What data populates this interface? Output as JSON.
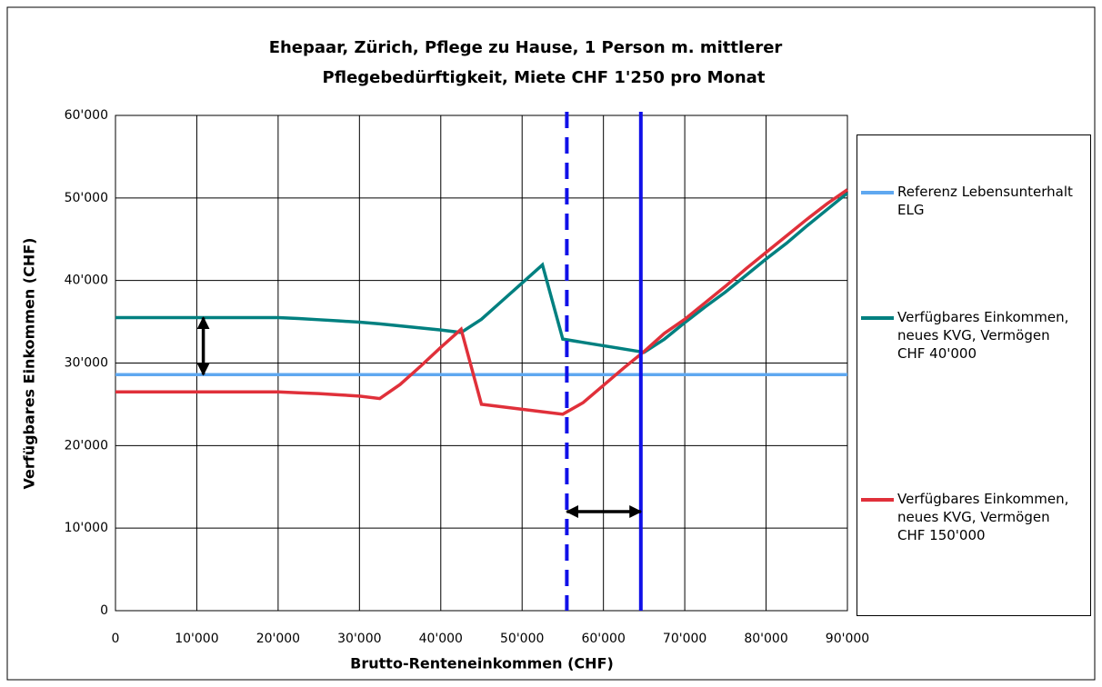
{
  "chart_data": {
    "type": "line",
    "title": [
      "Ehepaar, Zürich, Pflege zu Hause, 1 Person m. mittlerer",
      "Pflegebedürftigkeit, Miete CHF 1'250 pro Monat"
    ],
    "xlabel": "Brutto-Renteneinkommen (CHF)",
    "ylabel": "Verfügbares Einkommen (CHF)",
    "x": [
      0,
      2500,
      5000,
      7500,
      10000,
      12500,
      15000,
      17500,
      20000,
      22500,
      25000,
      27500,
      30000,
      32500,
      35000,
      37500,
      40000,
      42500,
      45000,
      47500,
      50000,
      52500,
      55000,
      57500,
      60000,
      62500,
      65000,
      67500,
      70000,
      72500,
      75000,
      77500,
      80000,
      82500,
      85000,
      87500,
      90000
    ],
    "series": [
      {
        "name": "Referenz Lebensunterhalt ELG",
        "color": "#5fa8f0",
        "values": [
          28600,
          28600,
          28600,
          28600,
          28600,
          28600,
          28600,
          28600,
          28600,
          28600,
          28600,
          28600,
          28600,
          28600,
          28600,
          28600,
          28600,
          28600,
          28600,
          28600,
          28600,
          28600,
          28600,
          28600,
          28600,
          28600,
          28600,
          28600,
          28600,
          28600,
          28600,
          28600,
          28600,
          28600,
          28600,
          28600,
          28600
        ]
      },
      {
        "name": "Verfügbares Einkommen, neues KVG, Vermögen CHF 40'000",
        "color": "#008080",
        "values": [
          35500,
          35500,
          35500,
          35500,
          35500,
          35500,
          35500,
          35500,
          35500,
          35400,
          35250,
          35100,
          34950,
          34750,
          34500,
          34250,
          34000,
          33700,
          35300,
          37500,
          39700,
          41900,
          32900,
          32500,
          32100,
          31700,
          31300,
          32900,
          34900,
          36800,
          38600,
          40600,
          42600,
          44500,
          46600,
          48600,
          50600
        ]
      },
      {
        "name": "Verfügbares Einkommen, neues KVG, Vermögen CHF 150'000",
        "color": "#e0303a",
        "values": [
          26500,
          26500,
          26500,
          26500,
          26500,
          26500,
          26500,
          26500,
          26500,
          26400,
          26300,
          26150,
          26000,
          25700,
          27400,
          29600,
          31900,
          34100,
          25000,
          24700,
          24400,
          24100,
          23800,
          25200,
          27300,
          29400,
          31400,
          33600,
          35300,
          37300,
          39300,
          41400,
          43400,
          45400,
          47400,
          49300,
          51000
        ]
      }
    ],
    "reference_lines": [
      {
        "x": 55500,
        "style": "dashed",
        "color": "#1010e8"
      },
      {
        "x": 64600,
        "style": "solid",
        "color": "#1010e8"
      }
    ],
    "arrows": [
      {
        "x": [
          10800,
          10800
        ],
        "y": [
          35500,
          28600
        ]
      },
      {
        "x": [
          55500,
          64600
        ],
        "y": [
          12000,
          12000
        ]
      }
    ],
    "xlim": [
      0,
      90000
    ],
    "xticks": [
      0,
      {
        "value": 10000,
        "label": "10'000"
      },
      {
        "value": 20000,
        "label": "20'000"
      },
      {
        "value": 30000,
        "label": "30'000"
      },
      {
        "value": 40000,
        "label": "40'000"
      },
      {
        "value": 50000,
        "label": "50'000"
      },
      {
        "value": 60000,
        "label": "60'000"
      },
      {
        "value": 70000,
        "label": "70'000"
      },
      {
        "value": 80000,
        "label": "80'000"
      },
      {
        "value": 90000,
        "label": "90'000"
      }
    ],
    "ylim": [
      0,
      60000
    ],
    "yticks": [
      0,
      {
        "value": 10000,
        "label": "10'000"
      },
      {
        "value": 20000,
        "label": "20'000"
      },
      {
        "value": 30000,
        "label": "30'000"
      },
      {
        "value": 40000,
        "label": "40'000"
      },
      {
        "value": 50000,
        "label": "50'000"
      },
      {
        "value": 60000,
        "label": "60'000"
      }
    ],
    "grid": true,
    "legend": "right"
  }
}
